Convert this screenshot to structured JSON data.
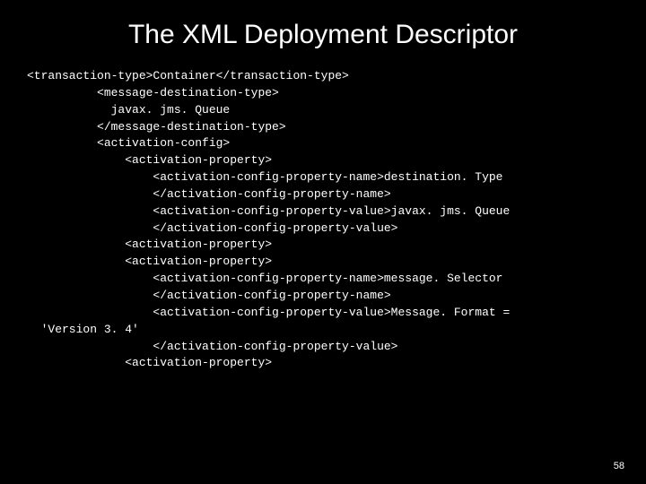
{
  "title": "The XML Deployment Descriptor",
  "code_lines": [
    "<transaction-type>Container</transaction-type>",
    "          <message-destination-type>",
    "            javax. jms. Queue",
    "          </message-destination-type>",
    "          <activation-config>",
    "              <activation-property>",
    "                  <activation-config-property-name>destination. Type",
    "                  </activation-config-property-name>",
    "                  <activation-config-property-value>javax. jms. Queue",
    "                  </activation-config-property-value>",
    "              <activation-property>",
    "              <activation-property>",
    "                  <activation-config-property-name>message. Selector",
    "                  </activation-config-property-name>",
    "                  <activation-config-property-value>Message. Format =",
    "  'Version 3. 4'",
    "                  </activation-config-property-value>",
    "              <activation-property>"
  ],
  "page_number": "58",
  "colors": {
    "background": "#000000",
    "text": "#ffffff"
  },
  "fonts": {
    "title_size": 30,
    "code_size": 13,
    "code_family": "Courier New"
  }
}
